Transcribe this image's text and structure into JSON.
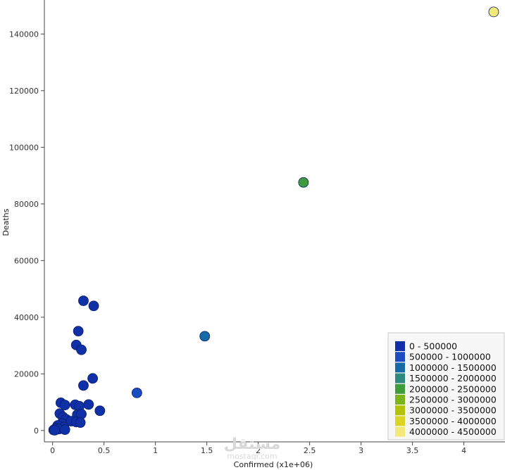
{
  "chart_data": {
    "type": "scatter",
    "xlabel": "Confirmed (x1e+06)",
    "ylabel": "Deaths",
    "xlim": [
      -0.08,
      4.4
    ],
    "ylim": [
      -4000,
      152000
    ],
    "x_ticks": [
      0,
      0.5,
      1,
      1.5,
      2,
      2.5,
      3,
      3.5,
      4
    ],
    "x_tick_labels": [
      "0",
      "0.5",
      "1",
      "1.5",
      "2",
      "2.5",
      "3",
      "3.5",
      "4"
    ],
    "y_ticks": [
      0,
      20000,
      40000,
      60000,
      80000,
      100000,
      120000,
      140000
    ],
    "y_tick_labels": [
      "0",
      "20000",
      "40000",
      "60000",
      "80000",
      "100000",
      "120000",
      "140000"
    ],
    "grid": false,
    "legend_placement": "bottom-right",
    "color_bins": [
      {
        "label": "0 - 500000",
        "color": "#1030a8"
      },
      {
        "label": "500000 - 1000000",
        "color": "#1a4cc0"
      },
      {
        "label": "1000000 - 1500000",
        "color": "#166aa8"
      },
      {
        "label": "1500000 - 2000000",
        "color": "#2e8a80"
      },
      {
        "label": "2000000 - 2500000",
        "color": "#3e9c3a"
      },
      {
        "label": "2500000 - 3000000",
        "color": "#78b41a"
      },
      {
        "label": "3000000 - 3500000",
        "color": "#b2c408"
      },
      {
        "label": "3500000 - 4000000",
        "color": "#dcd424"
      },
      {
        "label": "4000000 - 4500000",
        "color": "#f2ea78"
      }
    ],
    "points": [
      {
        "x": 4.29,
        "y": 147800
      },
      {
        "x": 2.44,
        "y": 87600
      },
      {
        "x": 1.48,
        "y": 33300
      },
      {
        "x": 0.82,
        "y": 13300
      },
      {
        "x": 0.3,
        "y": 45800
      },
      {
        "x": 0.4,
        "y": 44000
      },
      {
        "x": 0.25,
        "y": 35100
      },
      {
        "x": 0.23,
        "y": 30200
      },
      {
        "x": 0.28,
        "y": 28500
      },
      {
        "x": 0.39,
        "y": 18400
      },
      {
        "x": 0.3,
        "y": 15900
      },
      {
        "x": 0.08,
        "y": 9800
      },
      {
        "x": 0.12,
        "y": 9000
      },
      {
        "x": 0.22,
        "y": 9100
      },
      {
        "x": 0.26,
        "y": 8600
      },
      {
        "x": 0.35,
        "y": 9200
      },
      {
        "x": 0.46,
        "y": 7000
      },
      {
        "x": 0.07,
        "y": 6000
      },
      {
        "x": 0.24,
        "y": 5600
      },
      {
        "x": 0.28,
        "y": 5800
      },
      {
        "x": 0.1,
        "y": 4800
      },
      {
        "x": 0.13,
        "y": 4000
      },
      {
        "x": 0.18,
        "y": 3300
      },
      {
        "x": 0.23,
        "y": 3000
      },
      {
        "x": 0.27,
        "y": 2800
      },
      {
        "x": 0.09,
        "y": 2500
      },
      {
        "x": 0.05,
        "y": 1800
      },
      {
        "x": 0.11,
        "y": 1200
      },
      {
        "x": 0.03,
        "y": 800
      },
      {
        "x": 0.06,
        "y": 500
      },
      {
        "x": 0.12,
        "y": 300
      },
      {
        "x": 0.01,
        "y": 200
      },
      {
        "x": 0.02,
        "y": 100
      }
    ]
  },
  "watermark": {
    "main": "مستقل",
    "sub": "mostaql.com"
  }
}
